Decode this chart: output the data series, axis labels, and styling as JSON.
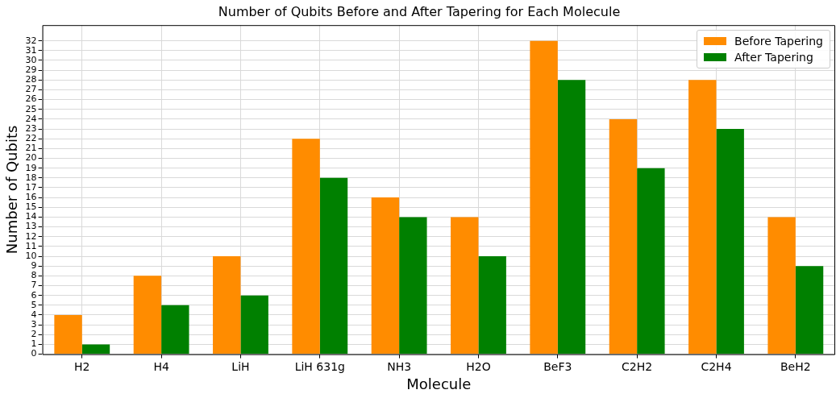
{
  "chart_data": {
    "type": "bar",
    "title": "Number of Qubits Before and After Tapering for Each Molecule",
    "xlabel": "Molecule",
    "ylabel": "Number of Qubits",
    "categories": [
      "H2",
      "H4",
      "LiH",
      "LiH 631g",
      "NH3",
      "H2O",
      "BeF3",
      "C2H2",
      "C2H4",
      "BeH2"
    ],
    "series": [
      {
        "name": "Before Tapering",
        "color": "#ff8c00",
        "values": [
          4,
          8,
          10,
          22,
          16,
          14,
          32,
          24,
          28,
          14
        ]
      },
      {
        "name": "After Tapering",
        "color": "#008000",
        "values": [
          1,
          5,
          6,
          18,
          14,
          10,
          28,
          19,
          23,
          9
        ]
      }
    ],
    "ylim": [
      0,
      33.6
    ],
    "yticks": [
      0,
      1,
      2,
      3,
      4,
      5,
      6,
      7,
      8,
      9,
      10,
      11,
      12,
      13,
      14,
      15,
      16,
      17,
      18,
      19,
      20,
      21,
      22,
      23,
      24,
      25,
      26,
      27,
      28,
      29,
      30,
      31,
      32
    ],
    "grid": true,
    "legend": "top right"
  }
}
